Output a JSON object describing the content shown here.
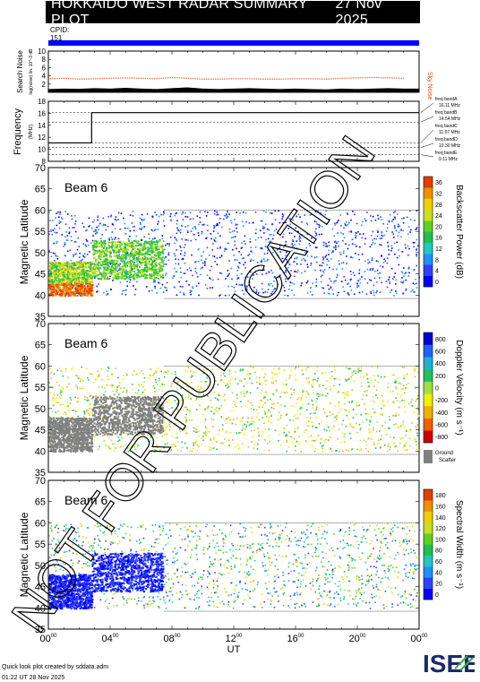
{
  "header": {
    "title": "HOKKAIDO WEST RADAR SUMMARY PLOT",
    "date": "27 Nov 2025",
    "cpid_label": "CPID:",
    "cpid_value": "151"
  },
  "colors": {
    "cpid_bar": "#0000ff",
    "search_noise": "#000000",
    "sky_noise": "#e05020",
    "frequency_line": "#000000"
  },
  "watermark": "NOT FOR PUBLICATION",
  "footer": {
    "line1": "Quick look plot created by sddata.adm",
    "line2": "01:22 UT 28 Nov 2025"
  },
  "logo": {
    "text": "ISEE",
    "colors": [
      "#1a2a6c",
      "#3ea84a"
    ]
  },
  "chart_data": [
    {
      "type": "line",
      "panel": "noise",
      "ylabel": "Search Noise",
      "ylabel_sub": "log(noise) lin. 10^-3 dB",
      "right_label": "Sky Noise",
      "ylim": [
        0,
        10
      ],
      "yticks": [
        "2",
        "4",
        "6",
        "8",
        "10"
      ],
      "series": [
        {
          "name": "Search Noise",
          "values": [
            0.8,
            0.9,
            0.85,
            1.0,
            0.9,
            1.1,
            0.9,
            0.8,
            1.0,
            1.2,
            0.9,
            0.8,
            0.9,
            1.0,
            0.9,
            0.8,
            0.9,
            0.8,
            0.7,
            0.9,
            0.8,
            0.9,
            1.0,
            0.9
          ]
        },
        {
          "name": "Sky Noise",
          "values": [
            3.3,
            3.4,
            3.2,
            3.3,
            3.4,
            3.5,
            3.4,
            3.3,
            3.6,
            3.4,
            3.2,
            3.2,
            3.3,
            3.3,
            3.2,
            3.2,
            3.3,
            3.3,
            3.2,
            3.4,
            3.5,
            3.6,
            3.5,
            3.4
          ]
        }
      ]
    },
    {
      "type": "line",
      "panel": "frequency",
      "ylabel": "Frequency",
      "ylabel_sub": "(MHz)",
      "ylim": [
        8,
        18
      ],
      "yticks": [
        "8",
        "10",
        "12",
        "14",
        "16",
        "18"
      ],
      "series": [
        {
          "x": [
            0,
            2.8,
            2.8,
            24
          ],
          "values": [
            11.07,
            11.07,
            16.11,
            16.11
          ]
        }
      ],
      "bands": [
        {
          "label": "freq bandA",
          "value": "16.11 MHz",
          "freq": 16.11
        },
        {
          "label": "freq bandB",
          "value": "14.54 MHz",
          "freq": 14.54
        },
        {
          "label": "freq bandC",
          "value": "11.07 MHz",
          "freq": 11.07
        },
        {
          "label": "freq bandD",
          "value": "10.30 MHz",
          "freq": 10.3
        },
        {
          "label": "freq bandE",
          "value": "9.11 MHz",
          "freq": 9.11
        }
      ]
    },
    {
      "type": "heatmap",
      "panel": "power",
      "label": "Beam  6",
      "ylabel": "Magnetic Latitude",
      "ylim": [
        35,
        70
      ],
      "yticks": [
        "35",
        "40",
        "45",
        "50",
        "55",
        "60",
        "65",
        "70"
      ],
      "colorbar_label": "Backscatter Power (dB)",
      "colorbar_ticks": [
        "0",
        "4",
        "8",
        "12",
        "16",
        "20",
        "24",
        "28",
        "32",
        "36"
      ],
      "colorscale": [
        "#0000ff",
        "#3040ff",
        "#2090ff",
        "#20c8c0",
        "#20c050",
        "#60d020",
        "#c8e020",
        "#f0d000",
        "#f09000",
        "#e04000"
      ]
    },
    {
      "type": "heatmap",
      "panel": "velocity",
      "label": "Beam  6",
      "ylabel": "Magnetic Latitude",
      "ylim": [
        35,
        70
      ],
      "yticks": [
        "35",
        "40",
        "45",
        "50",
        "55",
        "60",
        "65",
        "70"
      ],
      "colorbar_label": "Doppler Velocity (m s⁻¹)",
      "colorbar_ticks": [
        "800",
        "600",
        "400",
        "200",
        "0",
        "-200",
        "-400",
        "-600",
        "-800"
      ],
      "ground_scatter_label": "Ground Scatter",
      "colorscale": [
        "#0000d0",
        "#2060ff",
        "#20b0d0",
        "#20c060",
        "#a0e040",
        "#f0f000",
        "#f0b000",
        "#f06000",
        "#d00000"
      ]
    },
    {
      "type": "heatmap",
      "panel": "width",
      "label": "Beam  6",
      "ylabel": "Magnetic Latitude",
      "ylim": [
        35,
        70
      ],
      "yticks": [
        "35",
        "40",
        "45",
        "50",
        "55",
        "60",
        "65",
        "70"
      ],
      "colorbar_label": "Spectral Width (m s⁻¹)",
      "colorbar_ticks": [
        "0",
        "20",
        "40",
        "60",
        "80",
        "100",
        "120",
        "140",
        "160",
        "180"
      ],
      "colorscale": [
        "#0000ff",
        "#3040ff",
        "#2090ff",
        "#20c8c0",
        "#20c050",
        "#60d020",
        "#c8e020",
        "#f0d000",
        "#f09000",
        "#e04000"
      ]
    }
  ],
  "xaxis": {
    "label": "UT",
    "ticks": [
      "00",
      "04",
      "08",
      "12",
      "16",
      "20",
      "00"
    ],
    "tick_superscript": "00"
  }
}
